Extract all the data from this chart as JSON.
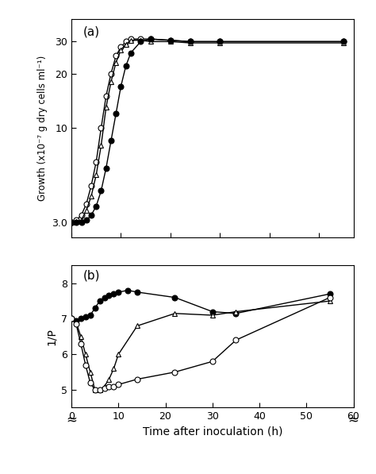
{
  "panel_a": {
    "label": "(a)",
    "open_circle": {
      "x": [
        0,
        1,
        2,
        3,
        4,
        5,
        6,
        7,
        8,
        9,
        10,
        11,
        12,
        14,
        16,
        20,
        24,
        30,
        55
      ],
      "y": [
        3.0,
        3.1,
        3.3,
        3.8,
        4.8,
        6.5,
        10,
        15,
        20,
        25,
        28,
        30,
        31,
        31,
        31,
        30.5,
        30,
        30,
        30
      ]
    },
    "open_triangle": {
      "x": [
        0,
        1,
        2,
        3,
        4,
        5,
        6,
        7,
        8,
        9,
        10,
        11,
        12,
        14,
        16,
        20,
        24,
        30,
        55
      ],
      "y": [
        3.0,
        3.05,
        3.1,
        3.5,
        4.2,
        5.5,
        8,
        13,
        18,
        23,
        27,
        29,
        30.5,
        30.5,
        30,
        30,
        29.5,
        29.5,
        29.5
      ]
    },
    "filled_circle": {
      "x": [
        0,
        1,
        2,
        3,
        4,
        5,
        6,
        7,
        8,
        9,
        10,
        11,
        12,
        14,
        16,
        20,
        24,
        30,
        55
      ],
      "y": [
        3.0,
        3.0,
        3.0,
        3.1,
        3.3,
        3.7,
        4.5,
        6.0,
        8.5,
        12,
        17,
        22,
        26,
        30,
        31,
        30.5,
        30,
        30,
        30
      ]
    },
    "yticks": [
      3.0,
      10,
      20,
      30
    ],
    "ytick_labels": [
      "3.0",
      "10",
      "20",
      "30"
    ],
    "ylabel": "Growth (x10⁻⁷ g dry cells ml⁻¹)",
    "xlim": [
      0,
      57
    ],
    "ylim": [
      2.5,
      40
    ],
    "xticks": [
      0,
      10,
      20,
      30,
      40,
      50
    ]
  },
  "panel_b": {
    "label": "(b)",
    "filled_circle": {
      "x": [
        0,
        1,
        2,
        3,
        4,
        5,
        6,
        7,
        8,
        9,
        10,
        12,
        14,
        22,
        30,
        35,
        55
      ],
      "y": [
        7.0,
        6.95,
        7.0,
        7.05,
        7.1,
        7.3,
        7.5,
        7.6,
        7.65,
        7.7,
        7.75,
        7.8,
        7.75,
        7.6,
        7.2,
        7.15,
        7.7
      ]
    },
    "open_triangle": {
      "x": [
        0,
        1,
        2,
        3,
        4,
        5,
        6,
        7,
        8,
        9,
        10,
        14,
        22,
        30,
        35,
        55
      ],
      "y": [
        7.0,
        6.9,
        6.5,
        6.0,
        5.5,
        5.0,
        5.0,
        5.1,
        5.3,
        5.6,
        6.0,
        6.8,
        7.15,
        7.1,
        7.2,
        7.5
      ]
    },
    "open_circle": {
      "x": [
        0,
        1,
        2,
        3,
        4,
        5,
        6,
        7,
        8,
        9,
        10,
        14,
        22,
        30,
        35,
        55
      ],
      "y": [
        7.0,
        6.85,
        6.3,
        5.7,
        5.2,
        5.0,
        5.0,
        5.05,
        5.1,
        5.1,
        5.15,
        5.3,
        5.5,
        5.8,
        6.4,
        7.6
      ]
    },
    "yticks": [
      5,
      6,
      7,
      8
    ],
    "ytick_labels": [
      "5",
      "6",
      "7",
      "8"
    ],
    "ylabel": "1/P",
    "ylim": [
      4.5,
      8.5
    ],
    "xlabel": "Time after inoculation (h)",
    "xticks": [
      0,
      10,
      20,
      30,
      40,
      50,
      60
    ],
    "xtick_labels": [
      "0",
      "10",
      "20",
      "30",
      "40",
      "50",
      "60"
    ],
    "xlim": [
      0,
      60
    ]
  },
  "line_color": "#000000",
  "bg_color": "#ffffff"
}
